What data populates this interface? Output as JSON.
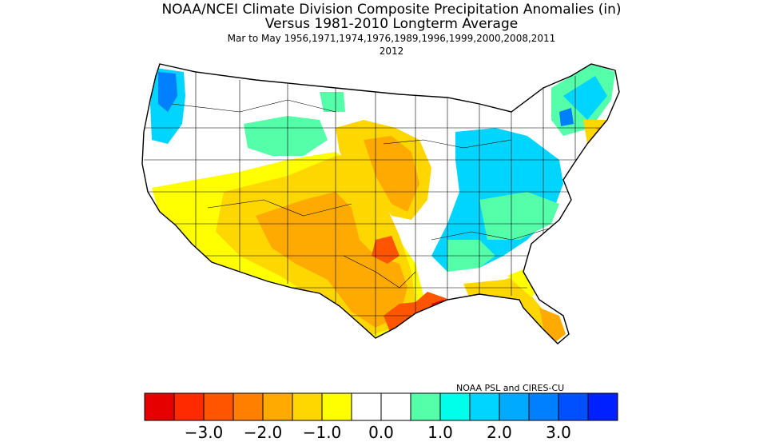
{
  "header": {
    "title_line1": "NOAA/NCEI Climate Division Composite Precipitation Anomalies (in)",
    "title_line2": "Versus 1981-2010 Longterm Average",
    "period_line": "Mar to May   1956,1971,1974,1976,1989,1996,1999,2000,2008,2011",
    "year_line": "2012"
  },
  "credit": "NOAA PSL and CIRES-CU",
  "colorbar": {
    "colors": [
      "#e60000",
      "#ff2a00",
      "#ff5500",
      "#ff8000",
      "#ffaa00",
      "#ffd700",
      "#ffff00",
      "#ffffff",
      "#ffffff",
      "#55ffaa",
      "#00ffea",
      "#00d5ff",
      "#00aaff",
      "#0080ff",
      "#0050ff",
      "#0020ff"
    ],
    "tick_labels": [
      "−3.0",
      "−2.0",
      "−1.0",
      "0.0",
      "1.0",
      "2.0",
      "3.0"
    ],
    "tick_values": [
      -3.0,
      -2.0,
      -1.0,
      0.0,
      1.0,
      2.0,
      3.0
    ]
  },
  "map": {
    "region": "contiguous-united-states",
    "fill_colors": {
      "wet_strong": "#0080ff",
      "wet": "#00d5ff",
      "wet_light": "#55ffaa",
      "neutral": "#ffffff",
      "dry_light": "#ffff00",
      "dry": "#ffd700",
      "dry_mod": "#ffaa00",
      "dry_strong": "#ff5500",
      "dry_extreme": "#ff2a00"
    }
  }
}
